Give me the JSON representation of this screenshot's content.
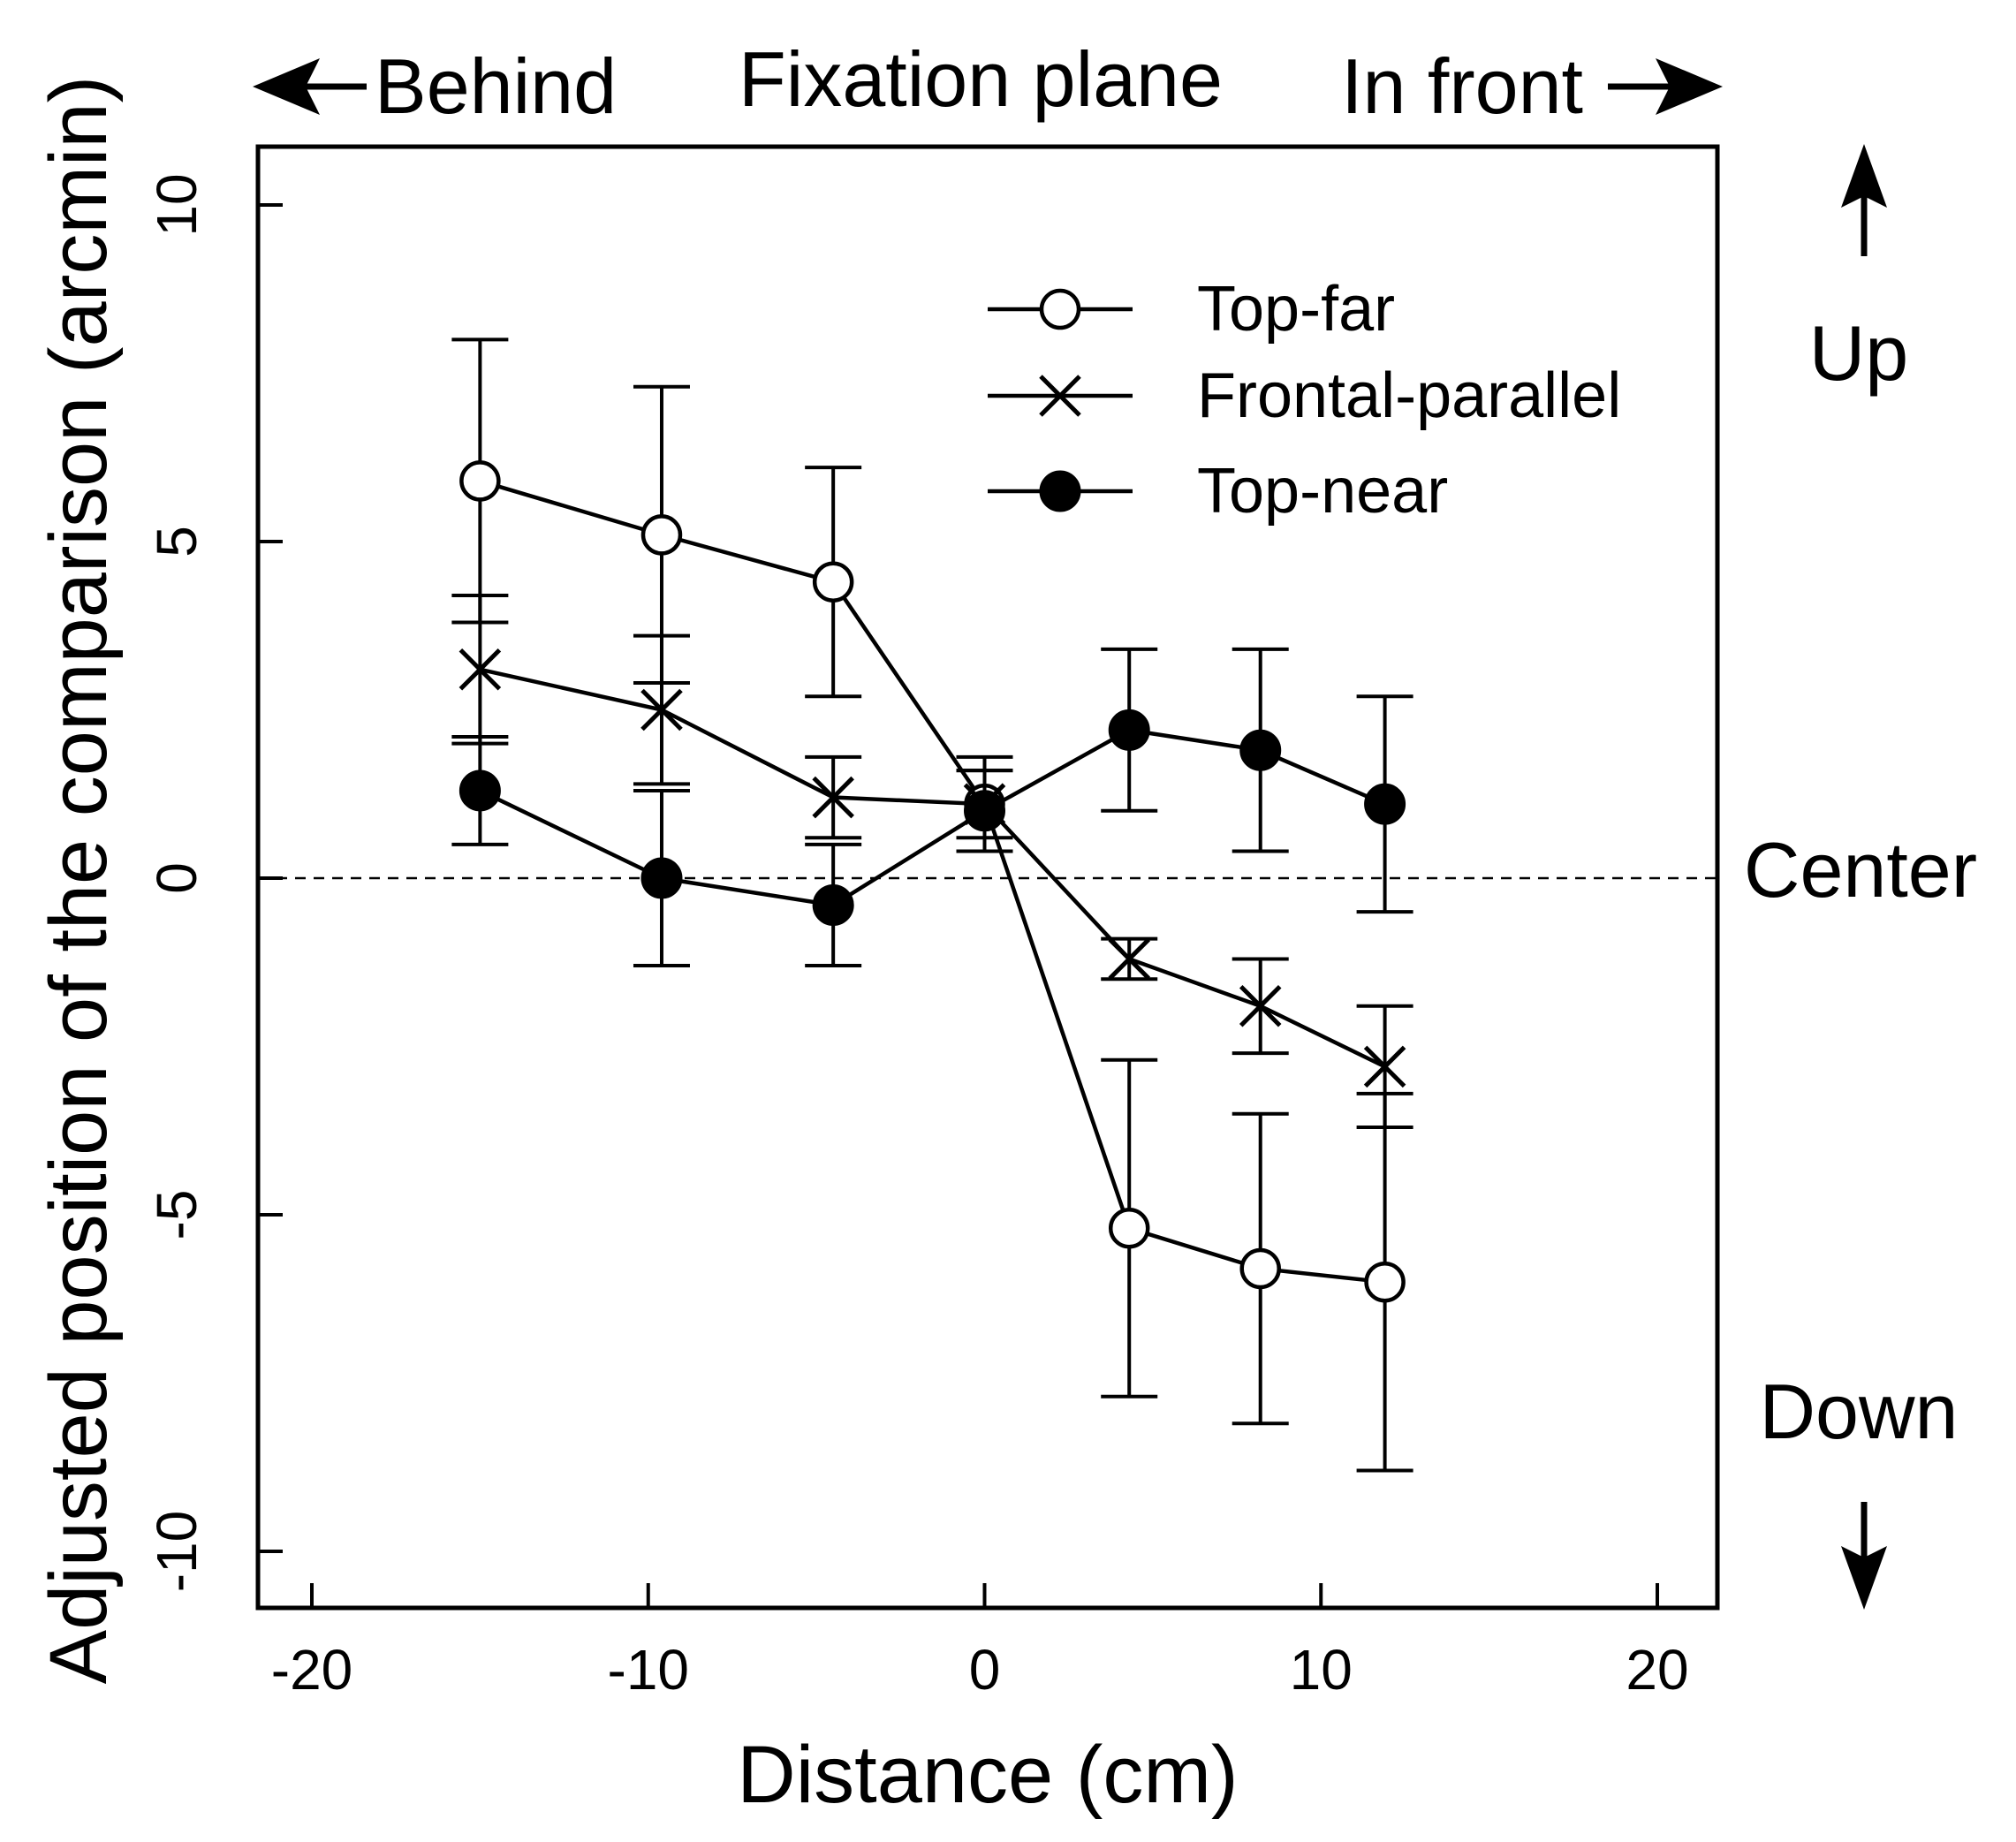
{
  "chart_data": {
    "type": "line",
    "title": "",
    "xlabel": "Distance (cm)",
    "ylabel": "Adjusted position of the comparison (arcmin)",
    "xlim": [
      -20,
      20
    ],
    "ylim": [
      -10,
      10
    ],
    "xticks": [
      -20,
      -10,
      0,
      10,
      20
    ],
    "yticks": [
      -10,
      -5,
      0,
      5,
      10
    ],
    "xtick_labels": [
      "-20",
      "-10",
      "0",
      "10",
      "20"
    ],
    "ytick_labels": [
      "-10",
      "-5",
      "0",
      "5",
      "10"
    ],
    "reference_line": {
      "y": 0,
      "style": "dashed"
    },
    "legend_position": "top-right",
    "annotations": {
      "top_left": "Behind",
      "top_center": "Fixation plane",
      "top_right": "In front",
      "right_up": "Up",
      "right_center": "Center",
      "right_down": "Down"
    },
    "series": [
      {
        "name": "Top-far",
        "marker": "open-circle",
        "x": [
          -15,
          -9.6,
          -4.5,
          0,
          4.3,
          8.2,
          11.9
        ],
        "values": [
          5.9,
          5.1,
          4.4,
          1.1,
          -5.2,
          -5.8,
          -6.0
        ],
        "err_low": [
          2.1,
          2.2,
          1.7,
          0.7,
          2.5,
          2.3,
          2.8
        ],
        "err_high": [
          2.1,
          2.2,
          1.7,
          0.7,
          2.5,
          2.3,
          2.8
        ]
      },
      {
        "name": "Frontal-parallel",
        "marker": "x",
        "x": [
          -15,
          -9.6,
          -4.5,
          0,
          4.3,
          8.2,
          11.9
        ],
        "values": [
          3.1,
          2.5,
          1.2,
          1.1,
          -1.2,
          -1.9,
          -2.8
        ],
        "err_low": [
          1.1,
          1.1,
          0.6,
          0.5,
          0.3,
          0.7,
          0.9
        ],
        "err_high": [
          1.1,
          1.1,
          0.6,
          0.5,
          0.3,
          0.7,
          0.9
        ]
      },
      {
        "name": "Top-near",
        "marker": "filled-circle",
        "x": [
          -15,
          -9.6,
          -4.5,
          0,
          4.3,
          8.2,
          11.9
        ],
        "values": [
          1.3,
          0.0,
          -0.4,
          1.0,
          2.2,
          1.9,
          1.1
        ],
        "err_low": [
          0.8,
          1.3,
          0.9,
          0.6,
          1.2,
          1.5,
          1.6
        ],
        "err_high": [
          0.8,
          1.3,
          0.9,
          0.6,
          1.2,
          1.5,
          1.6
        ]
      }
    ]
  }
}
